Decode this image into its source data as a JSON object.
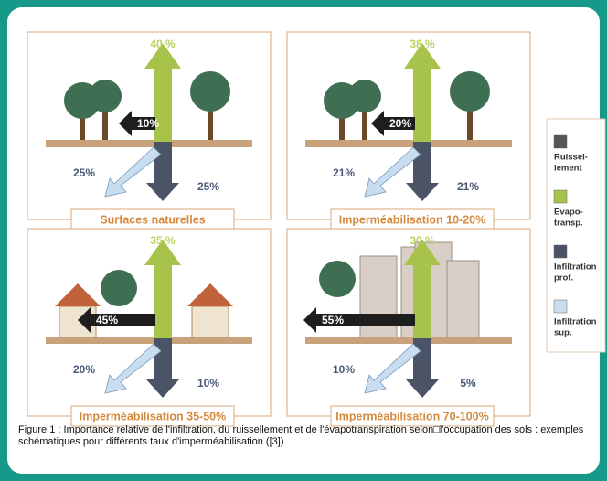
{
  "panels": [
    {
      "title": "Surfaces naturelles",
      "evapotranspiration": "40 %",
      "runoff": "10%",
      "shallow_infiltration": "25%",
      "deep_infiltration": "25%"
    },
    {
      "title": "Imperméabilisation 10-20%",
      "evapotranspiration": "38 %",
      "runoff": "20%",
      "shallow_infiltration": "21%",
      "deep_infiltration": "21%"
    },
    {
      "title": "Imperméabilisation 35-50%",
      "evapotranspiration": "35 %",
      "runoff": "45%",
      "shallow_infiltration": "20%",
      "deep_infiltration": "10%"
    },
    {
      "title": "Imperméabilisation 70-100%",
      "evapotranspiration": "30 %",
      "runoff": "55%",
      "shallow_infiltration": "10%",
      "deep_infiltration": "5%"
    }
  ],
  "legend": [
    {
      "lines": [
        "Ruissel-",
        "lement"
      ]
    },
    {
      "lines": [
        "Evapo-",
        "transp."
      ]
    },
    {
      "lines": [
        "Infiltration",
        "prof."
      ]
    },
    {
      "lines": [
        "Infiltration",
        "sup."
      ]
    }
  ],
  "caption": "Figure 1 : Importance relative de l'infiltration, du ruissellement et de l'évapotranspiration selon□l'occupation des sols : exemples schématiques pour différents taux d'imperméabilisation ([3])"
}
